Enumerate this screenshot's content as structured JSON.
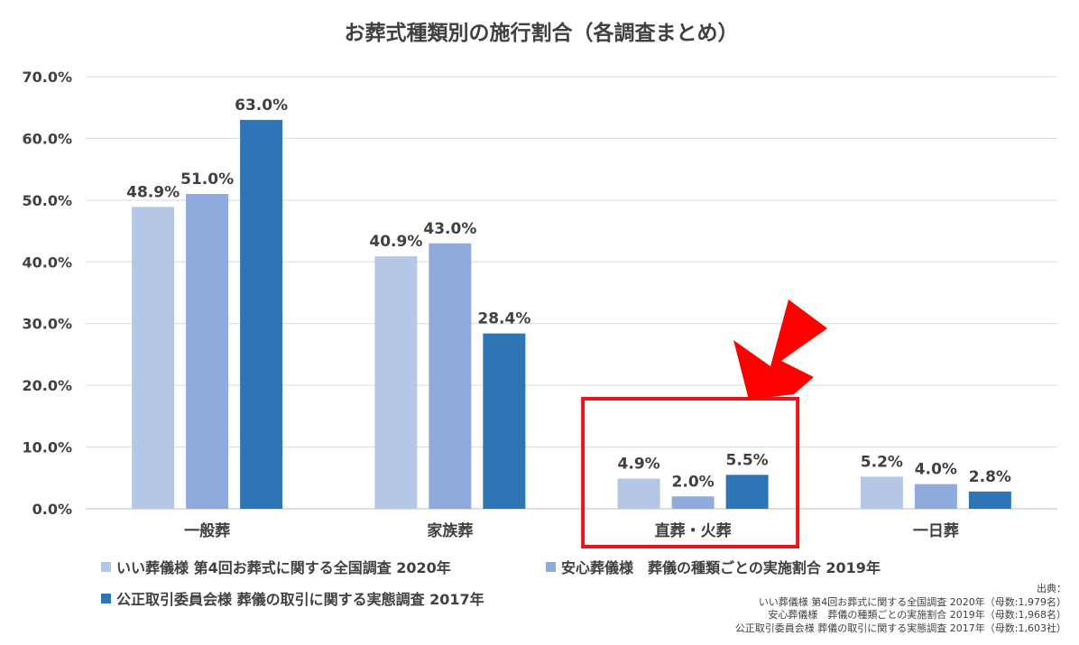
{
  "chart_data": {
    "type": "bar",
    "title": "お葬式種類別の施行割合（各調査まとめ）",
    "categories": [
      "一般葬",
      "家族葬",
      "直葬・火葬",
      "一日葬"
    ],
    "series": [
      {
        "name": "いい葬儀様 第4回お葬式に関する全国調査 2020年",
        "values": [
          48.9,
          40.9,
          4.9,
          5.2
        ],
        "color": "#b4c7e7"
      },
      {
        "name": "安心葬儀様　葬儀の種類ごとの実施割合 2019年",
        "values": [
          51.0,
          43.0,
          2.0,
          4.0
        ],
        "color": "#8faadc"
      },
      {
        "name": "公正取引委員会様 葬儀の取引に関する実態調査 2017年",
        "values": [
          63.0,
          28.4,
          5.5,
          2.8
        ],
        "color": "#2e75b6"
      }
    ],
    "value_labels": [
      [
        "48.9%",
        "40.9%",
        "4.9%",
        "5.2%"
      ],
      [
        "51.0%",
        "43.0%",
        "2.0%",
        "4.0%"
      ],
      [
        "63.0%",
        "28.4%",
        "5.5%",
        "2.8%"
      ]
    ],
    "y_ticks": [
      "0.0%",
      "10.0%",
      "20.0%",
      "30.0%",
      "40.0%",
      "50.0%",
      "60.0%",
      "70.0%"
    ],
    "ylim": [
      0,
      70
    ],
    "grid": true,
    "legend_position": "bottom-left",
    "highlight": {
      "category": "直葬・火葬",
      "box_color": "#e8141c",
      "arrow_color": "#ff0000"
    }
  },
  "source": {
    "heading": "出典：",
    "lines": [
      "いい葬儀様 第4回お葬式に関する全国調査 2020年（母数:1,979名）",
      "安心葬儀様　葬儀の種類ごとの実施割合 2019年（母数:1,968名）",
      "公正取引委員会様 葬儀の取引に関する実態調査 2017年（母数:1,603社）"
    ]
  }
}
